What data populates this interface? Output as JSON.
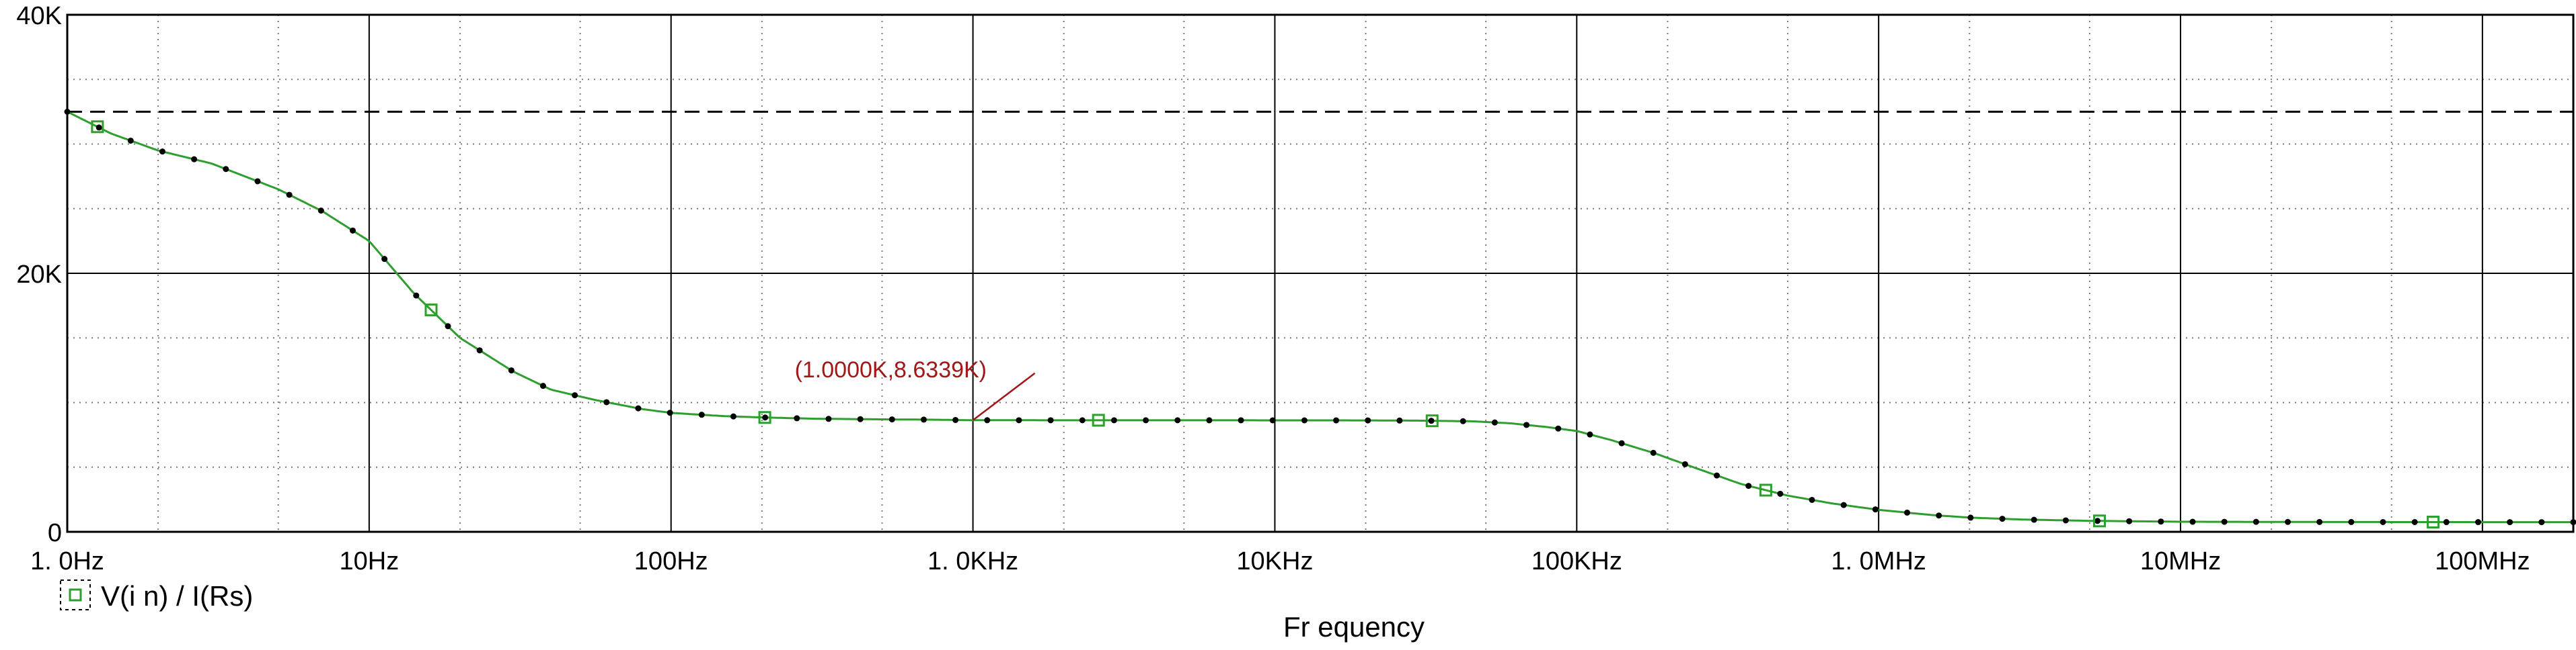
{
  "chart_data": {
    "type": "line",
    "x_scale": "log",
    "xlim": [
      1,
      200000000
    ],
    "ylim": [
      0,
      40000
    ],
    "x_ticks": [
      {
        "value": 1,
        "label": "1. 0Hz"
      },
      {
        "value": 10,
        "label": "10Hz"
      },
      {
        "value": 100,
        "label": "100Hz"
      },
      {
        "value": 1000,
        "label": "1. 0KHz"
      },
      {
        "value": 10000,
        "label": "10KHz"
      },
      {
        "value": 100000,
        "label": "100KHz"
      },
      {
        "value": 1000000,
        "label": "1. 0MHz"
      },
      {
        "value": 10000000,
        "label": "10MHz"
      },
      {
        "value": 100000000,
        "label": "100MHz"
      }
    ],
    "y_ticks": [
      {
        "value": 0,
        "label": "0"
      },
      {
        "value": 20000,
        "label": "20K"
      },
      {
        "value": 40000,
        "label": "40K"
      }
    ],
    "xlabel": "Fr equency",
    "ylabel": "",
    "grid": true,
    "legend_position": "bottom-left",
    "reference_line": {
      "y": 32500,
      "style": "dashed",
      "color": "#000000"
    },
    "series": [
      {
        "name": "V(i n) / I(Rs)",
        "color": "#2e9e2e",
        "marker": "square",
        "x": [
          1,
          1.4,
          2,
          3,
          5,
          7,
          10,
          14,
          20,
          30,
          40,
          56,
          80,
          100,
          150,
          200,
          300,
          500,
          700,
          1000,
          2000,
          5000,
          10000,
          20000,
          30000,
          45000,
          60000,
          80000,
          100000,
          130000,
          180000,
          250000,
          350000,
          500000,
          700000,
          1000000,
          1500000,
          2000000,
          3000000,
          5000000,
          10000000,
          30000000,
          100000000,
          200000000
        ],
        "values": [
          32500,
          30800,
          29500,
          28500,
          26500,
          24800,
          22500,
          18500,
          15000,
          12400,
          11000,
          10200,
          9500,
          9200,
          8950,
          8850,
          8750,
          8700,
          8680,
          8634,
          8630,
          8630,
          8625,
          8620,
          8600,
          8550,
          8400,
          8100,
          7800,
          7100,
          6100,
          4900,
          3700,
          2800,
          2200,
          1700,
          1300,
          1100,
          950,
          850,
          780,
          760,
          750,
          750
        ]
      }
    ],
    "annotations": [
      {
        "text": "(1.0000K,8.6339K)",
        "x": 1000,
        "y": 8633.9,
        "color": "#a01818"
      }
    ]
  }
}
